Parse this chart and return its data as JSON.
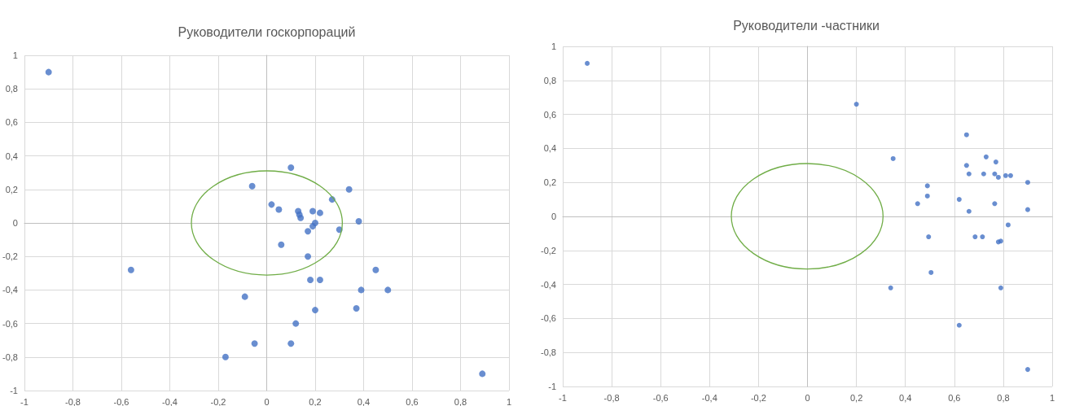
{
  "chart_data": [
    {
      "type": "scatter",
      "title": "Руководители госкорпораций",
      "xlim": [
        -1,
        1
      ],
      "ylim": [
        -1,
        1
      ],
      "xticks": [
        -1,
        {
          "value": -0.8,
          "label": "-0,8"
        },
        {
          "value": -0.6,
          "label": "-0,6"
        },
        {
          "value": -0.4,
          "label": "-0,4"
        },
        {
          "value": -0.2,
          "label": "-0,2"
        },
        0,
        {
          "value": 0.2,
          "label": "0,2"
        },
        {
          "value": 0.4,
          "label": "0,4"
        },
        {
          "value": 0.6,
          "label": "0,6"
        },
        {
          "value": 0.8,
          "label": "0,8"
        },
        1
      ],
      "yticks": [
        -1,
        {
          "value": -0.8,
          "label": "-0,8"
        },
        {
          "value": -0.6,
          "label": "-0,6"
        },
        {
          "value": -0.4,
          "label": "-0,4"
        },
        {
          "value": -0.2,
          "label": "-0,2"
        },
        0,
        {
          "value": 0.2,
          "label": "0,2"
        },
        {
          "value": 0.4,
          "label": "0,4"
        },
        {
          "value": 0.6,
          "label": "0,6"
        },
        {
          "value": 0.8,
          "label": "0,8"
        },
        1
      ],
      "grid": true,
      "marker": "circle",
      "series": [
        {
          "color": "#4472c4",
          "x": [
            -0.9,
            -0.06,
            0.1,
            0.02,
            0.05,
            0.13,
            0.135,
            0.14,
            0.19,
            0.22,
            0.27,
            0.34,
            0.38,
            0.2,
            0.19,
            0.17,
            0.3,
            0.06,
            0.17,
            -0.56,
            0.45,
            0.18,
            0.22,
            -0.09,
            0.39,
            0.5,
            0.2,
            0.37,
            0.12,
            -0.05,
            0.1,
            -0.17,
            0.89
          ],
          "values": [
            0.9,
            0.22,
            0.33,
            0.11,
            0.08,
            0.07,
            0.05,
            0.03,
            0.07,
            0.06,
            0.14,
            0.2,
            0.01,
            0,
            -0.02,
            -0.05,
            -0.04,
            -0.13,
            -0.2,
            -0.28,
            -0.28,
            -0.34,
            -0.34,
            -0.44,
            -0.4,
            -0.4,
            -0.52,
            -0.51,
            -0.6,
            -0.72,
            -0.72,
            -0.8,
            -0.9
          ]
        }
      ]
    },
    {
      "type": "scatter",
      "title": "Руководители -частники",
      "xlim": [
        -1,
        1
      ],
      "ylim": [
        -1,
        1
      ],
      "xticks": [
        -1,
        {
          "value": -0.8,
          "label": "-0,8"
        },
        {
          "value": -0.6,
          "label": "-0,6"
        },
        {
          "value": -0.4,
          "label": "-0,4"
        },
        {
          "value": -0.2,
          "label": "-0,2"
        },
        0,
        {
          "value": 0.2,
          "label": "0,2"
        },
        {
          "value": 0.4,
          "label": "0,4"
        },
        {
          "value": 0.6,
          "label": "0,6"
        },
        {
          "value": 0.8,
          "label": "0,8"
        },
        1
      ],
      "yticks": [
        -1,
        {
          "value": -0.8,
          "label": "-0,8"
        },
        {
          "value": -0.6,
          "label": "-0,6"
        },
        {
          "value": -0.4,
          "label": "-0,4"
        },
        {
          "value": -0.2,
          "label": "-0,2"
        },
        0,
        {
          "value": 0.2,
          "label": "0,2"
        },
        {
          "value": 0.4,
          "label": "0,4"
        },
        {
          "value": 0.6,
          "label": "0,6"
        },
        {
          "value": 0.8,
          "label": "0,8"
        },
        1
      ],
      "grid": true,
      "marker": "circle",
      "series": [
        {
          "color": "#4472c4",
          "x": [
            -0.9,
            0.2,
            0.35,
            0.65,
            0.73,
            0.77,
            0.65,
            0.66,
            0.72,
            0.765,
            0.78,
            0.81,
            0.83,
            0.9,
            0.49,
            0.49,
            0.45,
            0.62,
            0.765,
            0.66,
            0.9,
            0.82,
            0.495,
            0.685,
            0.715,
            0.78,
            0.79,
            0.505,
            0.34,
            0.79,
            0.62,
            0.9
          ],
          "values": [
            0.9,
            0.66,
            0.34,
            0.48,
            0.35,
            0.32,
            0.3,
            0.25,
            0.25,
            0.25,
            0.23,
            0.24,
            0.24,
            0.2,
            0.18,
            0.12,
            0.075,
            0.1,
            0.075,
            0.03,
            0.04,
            -0.05,
            -0.12,
            -0.12,
            -0.12,
            -0.15,
            -0.145,
            -0.33,
            -0.42,
            -0.42,
            -0.64,
            -0.9
          ]
        }
      ]
    }
  ]
}
